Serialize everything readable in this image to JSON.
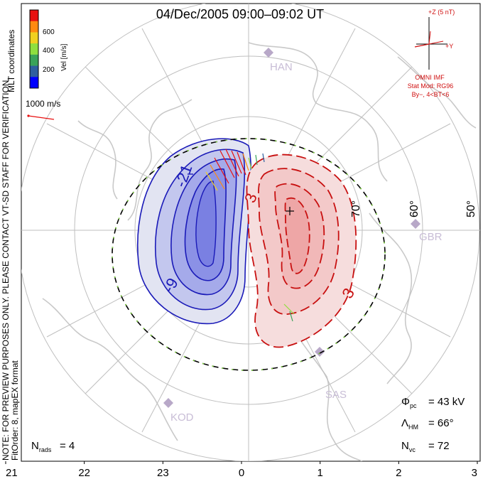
{
  "title": "04/Dec/2005 09:00–09:02 UT",
  "coord_label": "MLT coordinates",
  "colorbar": {
    "label": "Vel [m/s]",
    "ticks": [
      "600",
      "400",
      "200"
    ],
    "colors": [
      "#0000ff",
      "#2f5f9f",
      "#3aa35a",
      "#8fdf3f",
      "#f0d020",
      "#ff8a10",
      "#e81010"
    ]
  },
  "scale_label": "1000 m/s",
  "note": "NOTE: FOR PREVIEW PURPOSES ONLY. PLEASE CONTACT VT-SD STAFF FOR VERIFICATION.",
  "fit_order": "FitOrder: 8, mapEX format",
  "imf": {
    "z_label": "+Z (5 nT)",
    "y_label": "+Y",
    "source": "OMNI IMF",
    "model": "Stat Mod: RG96",
    "condition": "By−, 4<BT<6"
  },
  "stations": [
    "HAN",
    "GBR",
    "SAS",
    "KOD"
  ],
  "lat_labels": [
    "70°",
    "60°",
    "50°"
  ],
  "stats": {
    "phi_label": "Φ",
    "phi_sub": "pc",
    "phi_value": "= 43 kV",
    "lam_label": "Λ",
    "lam_sub": "HM",
    "lam_value": "= 66°",
    "nvc_label": "N",
    "nvc_sub": "vc",
    "nvc_value": "= 72",
    "nrads_label": "N",
    "nrads_sub": "rads",
    "nrads_value": "= 4"
  },
  "chart_data": {
    "type": "polar convection map",
    "title": "04/Dec/2005 09:00–09:02 UT",
    "x_axis_label": "MLT",
    "x_ticks": [
      "21",
      "22",
      "23",
      "0",
      "1",
      "2",
      "3"
    ],
    "latitude_circles": [
      80,
      70,
      60,
      50
    ],
    "heppner_maynard_boundary_deg": 66,
    "cross_polar_cap_potential_kV": 43,
    "contours": [
      {
        "name": "negative cell",
        "labels": [
          "-21",
          "-9"
        ],
        "color": "#1a1ab8"
      },
      {
        "name": "positive cell",
        "labels": [
          "3",
          "3"
        ],
        "color": "#c81010"
      }
    ]
  }
}
